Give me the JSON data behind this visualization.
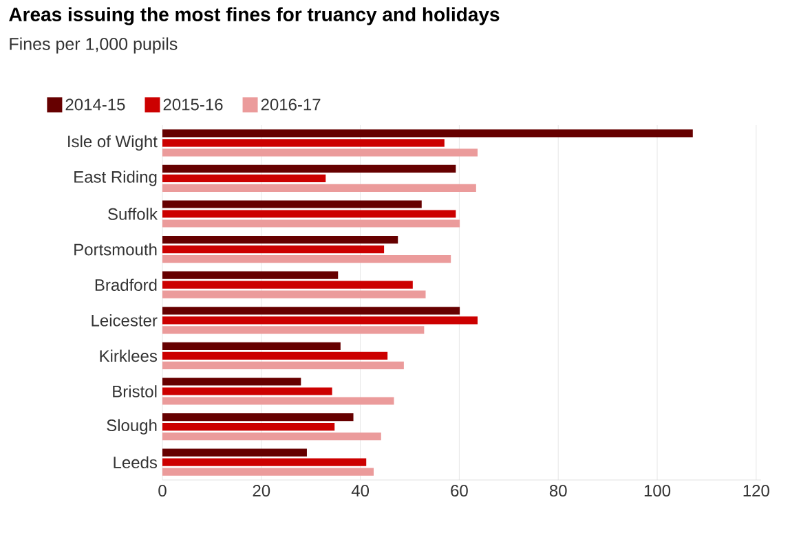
{
  "chart_data": {
    "type": "bar",
    "orientation": "horizontal",
    "title": "Areas issuing the most fines for truancy and holidays",
    "subtitle": "Fines per 1,000 pupils",
    "categories": [
      "Isle of Wight",
      "East Riding",
      "Suffolk",
      "Portsmouth",
      "Bradford",
      "Leicester",
      "Kirklees",
      "Bristol",
      "Slough",
      "Leeds"
    ],
    "series": [
      {
        "name": "2014-15",
        "color": "#660000",
        "values": [
          107.2,
          59.3,
          52.4,
          47.6,
          35.5,
          60.1,
          36,
          28,
          38.6,
          29.2
        ]
      },
      {
        "name": "2015-16",
        "color": "#cc0000",
        "values": [
          57,
          33,
          59.3,
          44.8,
          50.6,
          63.7,
          45.5,
          34.3,
          34.8,
          41.2
        ]
      },
      {
        "name": "2016-17",
        "color": "#eb9b9b",
        "values": [
          63.7,
          63.4,
          60.1,
          58.3,
          53.2,
          52.9,
          48.8,
          46.8,
          44.2,
          42.7
        ]
      }
    ],
    "xlim": [
      0,
      121
    ],
    "xticks": [
      0,
      20,
      40,
      60,
      80,
      100,
      120
    ],
    "grid": "x",
    "legend": "top left"
  }
}
